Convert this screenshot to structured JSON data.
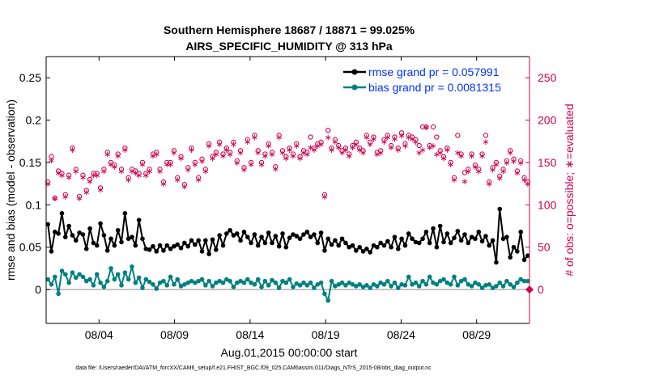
{
  "chart_data": {
    "type": "line",
    "title_line1": "Southern Hemisphere 18687 / 18871 = 99.025%",
    "title_line2": "AIRS_SPECIFIC_HUMIDITY @ 313 hPa",
    "xlabel": "Aug.01,2015 00:00:00 start",
    "ylabel_left": "rmse and bias (model - observation)",
    "ylabel_right": "# of obs: o=possible; ∗=evaluated",
    "footer": "data file: /Users/raeder/DAI/ATM_forcXX/CAM6_setup/f.e21.FHIST_BGC.f09_025.CAM6assim.011/Diags_NTrS_2015-08/obs_diag_output.nc",
    "x_range": [
      0,
      32
    ],
    "x_ticks": [
      3.5,
      8.5,
      13.5,
      18.5,
      23.5,
      28.5
    ],
    "x_tick_labels": [
      "08/04",
      "08/09",
      "08/14",
      "08/19",
      "08/24",
      "08/29"
    ],
    "ylim_left": [
      -0.04,
      0.275
    ],
    "yticks_left": [
      0,
      0.05,
      0.1,
      0.15,
      0.2,
      0.25
    ],
    "ytick_labels_left": [
      "0",
      "0.05",
      "0.1",
      "0.15",
      "0.2",
      "0.25"
    ],
    "ylim_right": [
      -40,
      275
    ],
    "yticks_right": [
      0,
      50,
      100,
      150,
      200,
      250
    ],
    "ytick_labels_right": [
      "0",
      "50",
      "100",
      "150",
      "200",
      "250"
    ],
    "legend": [
      {
        "name": "rmse grand pr = 0.057991",
        "color": "#000000"
      },
      {
        "name": "bias grand pr = 0.0081315",
        "color": "#008080"
      }
    ],
    "series": [
      {
        "name": "rmse",
        "color": "#000000",
        "values": [
          0.077,
          0.045,
          0.068,
          0.066,
          0.09,
          0.062,
          0.075,
          0.064,
          0.058,
          0.067,
          0.065,
          0.048,
          0.072,
          0.055,
          0.052,
          0.078,
          0.064,
          0.046,
          0.06,
          0.052,
          0.07,
          0.056,
          0.09,
          0.06,
          0.062,
          0.052,
          0.082,
          0.06,
          0.048,
          0.047,
          0.051,
          0.045,
          0.052,
          0.046,
          0.052,
          0.048,
          0.051,
          0.053,
          0.049,
          0.055,
          0.051,
          0.058,
          0.053,
          0.058,
          0.045,
          0.058,
          0.042,
          0.059,
          0.047,
          0.064,
          0.052,
          0.066,
          0.07,
          0.064,
          0.066,
          0.058,
          0.068,
          0.062,
          0.055,
          0.065,
          0.052,
          0.062,
          0.055,
          0.067,
          0.055,
          0.063,
          0.051,
          0.066,
          0.05,
          0.061,
          0.065,
          0.063,
          0.06,
          0.065,
          0.068,
          0.062,
          0.065,
          0.055,
          0.067,
          0.046,
          0.06,
          0.053,
          0.058,
          0.052,
          0.06,
          0.055,
          0.05,
          0.052,
          0.046,
          0.05,
          0.045,
          0.048,
          0.044,
          0.052,
          0.05,
          0.055,
          0.052,
          0.057,
          0.05,
          0.062,
          0.048,
          0.06,
          0.052,
          0.066,
          0.06,
          0.056,
          0.055,
          0.06,
          0.068,
          0.055,
          0.072,
          0.05,
          0.075,
          0.056,
          0.066,
          0.055,
          0.061,
          0.069,
          0.058,
          0.065,
          0.055,
          0.062,
          0.06,
          0.068,
          0.057,
          0.063,
          0.052,
          0.058,
          0.032,
          0.095,
          0.06,
          0.062,
          0.038,
          0.05,
          0.045,
          0.068,
          0.035,
          0.04
        ]
      },
      {
        "name": "bias",
        "color": "#008080",
        "values": [
          0.012,
          0.006,
          0.015,
          -0.005,
          0.022,
          0.018,
          0.008,
          0.02,
          0.014,
          0.018,
          0.015,
          0.01,
          0.012,
          0.005,
          0.018,
          0.008,
          0.003,
          0.01,
          0.025,
          0.012,
          0.018,
          0.005,
          0.02,
          0.012,
          0.027,
          0.008,
          0.014,
          0.002,
          0.012,
          0.009,
          0.006,
          0.001,
          0.008,
          0.01,
          0.005,
          0.015,
          0.006,
          0.012,
          0.004,
          0.006,
          0.008,
          0.01,
          0.008,
          0.01,
          0.012,
          0.005,
          0.01,
          0.004,
          0.008,
          0.01,
          0.008,
          0.012,
          0.01,
          0.003,
          0.008,
          0.01,
          0.008,
          0.012,
          0.008,
          0.006,
          0.012,
          0.003,
          0.01,
          0.005,
          0.011,
          0.008,
          0.002,
          0.01,
          0.008,
          0.012,
          0.003,
          0.007,
          0.005,
          0.008,
          0.005,
          0.008,
          0.002,
          0.006,
          0.008,
          -0.005,
          -0.013,
          0.01,
          0.004,
          0.006,
          0.008,
          0.005,
          0.008,
          0.006,
          0.004,
          0.006,
          0.003,
          0.005,
          0.002,
          0.006,
          0.004,
          0.008,
          0.006,
          0.01,
          0.004,
          0.008,
          0.002,
          0.006,
          0.005,
          0.015,
          0.006,
          0.008,
          0.004,
          0.01,
          0.006,
          0.015,
          0.008,
          0.006,
          0.01,
          0.012,
          0.008,
          0.006,
          0.015,
          0.005,
          0.01,
          0.012,
          0.006,
          0.004,
          0.008,
          0.006,
          0.002,
          0.005,
          0.006,
          0.002,
          0.004,
          0.008,
          0.004,
          0.01,
          0.006,
          0.003,
          0.008,
          0.012,
          0.01,
          0.01
        ]
      }
    ],
    "obs_evaluated": [
      125,
      153,
      108,
      138,
      135,
      110,
      133,
      165,
      140,
      108,
      133,
      115,
      128,
      135,
      135,
      118,
      140,
      160,
      148,
      145,
      158,
      140,
      165,
      130,
      140,
      138,
      135,
      148,
      135,
      140,
      158,
      160,
      140,
      125,
      148,
      148,
      162,
      130,
      155,
      122,
      142,
      165,
      148,
      130,
      152,
      140,
      170,
      155,
      160,
      172,
      158,
      165,
      160,
      172,
      150,
      162,
      142,
      175,
      148,
      180,
      162,
      148,
      158,
      170,
      160,
      143,
      180,
      162,
      155,
      165,
      158,
      170,
      155,
      162,
      160,
      168,
      165,
      170,
      172,
      110,
      180,
      165,
      175,
      168,
      162,
      165,
      158,
      168,
      172,
      165,
      162,
      180,
      172,
      178,
      160,
      162,
      175,
      180,
      168,
      178,
      165,
      182,
      170,
      180,
      178,
      175,
      162,
      165,
      192,
      168,
      170,
      160,
      162,
      155,
      165,
      148,
      130,
      162,
      158,
      128,
      140,
      158,
      145,
      140,
      158,
      175,
      125,
      142,
      148,
      132,
      140,
      150,
      162,
      152,
      138,
      150,
      130,
      125
    ],
    "obs_possible": [
      127,
      157,
      108,
      140,
      137,
      112,
      135,
      167,
      142,
      110,
      135,
      117,
      130,
      137,
      137,
      120,
      142,
      162,
      150,
      147,
      160,
      142,
      167,
      132,
      142,
      140,
      137,
      150,
      137,
      142,
      160,
      162,
      142,
      127,
      150,
      150,
      164,
      132,
      157,
      124,
      144,
      167,
      150,
      132,
      154,
      142,
      172,
      157,
      162,
      174,
      160,
      167,
      162,
      174,
      152,
      164,
      144,
      177,
      150,
      182,
      164,
      150,
      160,
      172,
      162,
      145,
      182,
      164,
      157,
      167,
      160,
      172,
      157,
      164,
      162,
      180,
      167,
      172,
      174,
      112,
      188,
      167,
      177,
      170,
      164,
      167,
      160,
      170,
      174,
      167,
      164,
      182,
      174,
      180,
      162,
      164,
      177,
      182,
      170,
      180,
      167,
      185,
      172,
      182,
      180,
      177,
      170,
      192,
      192,
      170,
      192,
      180,
      164,
      157,
      167,
      150,
      132,
      182,
      160,
      138,
      142,
      160,
      147,
      142,
      160,
      182,
      127,
      144,
      150,
      134,
      142,
      152,
      164,
      154,
      140,
      152,
      132,
      127
    ]
  }
}
